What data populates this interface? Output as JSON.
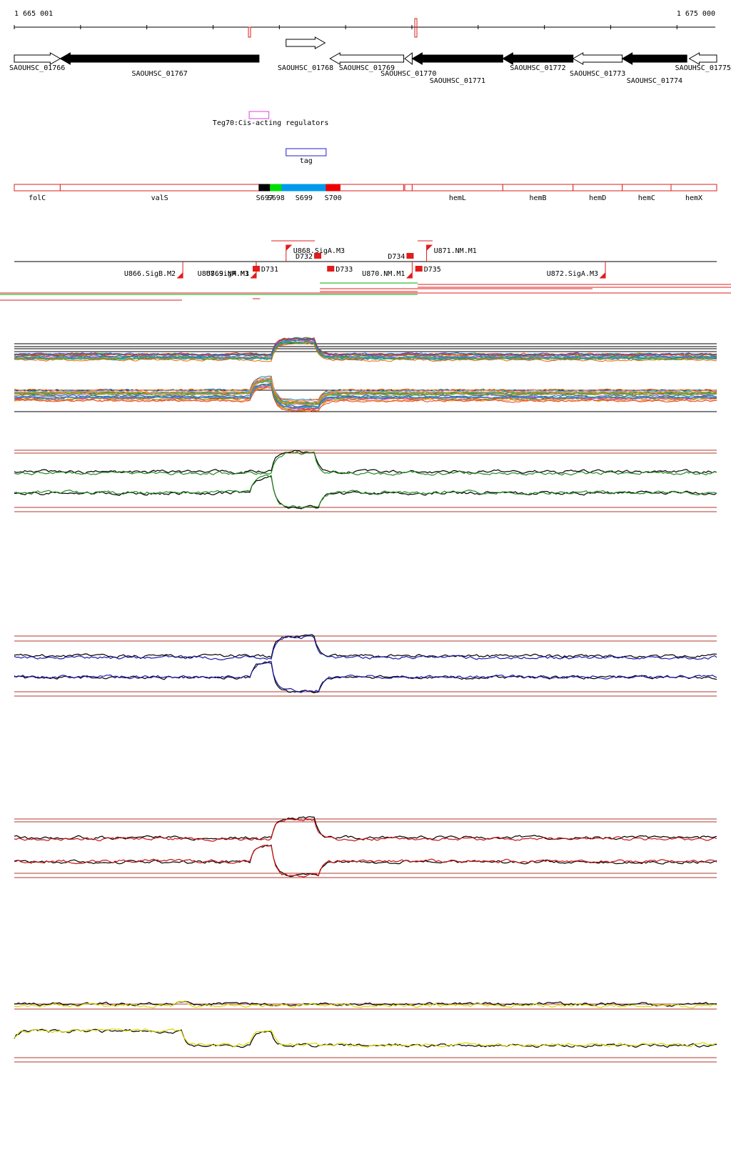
{
  "coordinates": {
    "start_label": "1 665 001",
    "end_label": "1 675 000",
    "start": 1665001,
    "end": 1675000
  },
  "genes": [
    {
      "id": "SAOUHSC_01766",
      "strand": "+",
      "fill": "white",
      "start": 1665001,
      "end": 1665655
    },
    {
      "id": "SAOUHSC_01767",
      "strand": "-",
      "fill": "black",
      "start": 1665655,
      "end": 1668485
    },
    {
      "id": "SAOUHSC_01768",
      "strand": "+",
      "fill": "white",
      "start": 1668870,
      "end": 1669425
    },
    {
      "id": "SAOUHSC_01769",
      "strand": "-",
      "fill": "white",
      "start": 1669495,
      "end": 1670545
    },
    {
      "id": "SAOUHSC_01770",
      "strand": "-",
      "fill": "white",
      "start": 1670560,
      "end": 1670665
    },
    {
      "id": "SAOUHSC_01771",
      "strand": "-",
      "fill": "black",
      "start": 1670665,
      "end": 1671955
    },
    {
      "id": "SAOUHSC_01772",
      "strand": "-",
      "fill": "black",
      "start": 1671955,
      "end": 1672955
    },
    {
      "id": "SAOUHSC_01773",
      "strand": "-",
      "fill": "white",
      "start": 1672955,
      "end": 1673655
    },
    {
      "id": "SAOUHSC_01774",
      "strand": "-",
      "fill": "black",
      "start": 1673655,
      "end": 1674575
    },
    {
      "id": "SAOUHSC_01775",
      "strand": "-",
      "fill": "white",
      "start": 1674610,
      "end": 1675000
    }
  ],
  "regulator": {
    "label": "Teg70:Cis-acting regulators",
    "start": 1668345,
    "end": 1668625
  },
  "tag_feature": {
    "label": "tag",
    "start": 1668870,
    "end": 1669440
  },
  "operons": [
    {
      "label": "folC",
      "start": 1665001,
      "end": 1665655
    },
    {
      "label": "valS",
      "start": 1665655,
      "end": 1668485
    },
    {
      "label": "S697",
      "start": 1668485,
      "end": 1668645,
      "color": "#000000"
    },
    {
      "label": "S698",
      "start": 1668645,
      "end": 1668810,
      "color": "#00dd00"
    },
    {
      "label": "S699",
      "start": 1668810,
      "end": 1669440,
      "color": "#0099ee"
    },
    {
      "label": "S700",
      "start": 1669440,
      "end": 1669640,
      "color": "#ee0000"
    },
    {
      "label": "",
      "start": 1669640,
      "end": 1670545
    },
    {
      "label": "",
      "start": 1670560,
      "end": 1670665
    },
    {
      "label": "hemL",
      "start": 1670665,
      "end": 1671955
    },
    {
      "label": "hemB",
      "start": 1671955,
      "end": 1672955
    },
    {
      "label": "hemD",
      "start": 1672955,
      "end": 1673655
    },
    {
      "label": "hemC",
      "start": 1673655,
      "end": 1674350
    },
    {
      "label": "hemX",
      "start": 1674350,
      "end": 1675000
    }
  ],
  "promoters": [
    {
      "label": "U866.SigB.M2",
      "strand": "-",
      "pos": 1667400
    },
    {
      "label": "U867.SigA.M3",
      "strand": "-",
      "pos": 1668445
    },
    {
      "label": "U869.NM.M1",
      "strand": "-",
      "pos": 1668445
    },
    {
      "label": "U868.SigA.M3",
      "strand": "+",
      "pos": 1668870
    },
    {
      "label": "U870.NM.M1",
      "strand": "-",
      "pos": 1670665
    },
    {
      "label": "U871.NM.M1",
      "strand": "+",
      "pos": 1670870
    },
    {
      "label": "U872.SigA.M3",
      "strand": "-",
      "pos": 1673415
    }
  ],
  "terminators": [
    {
      "label": "D731",
      "pos": 1668445
    },
    {
      "label": "D732",
      "pos": 1669320
    },
    {
      "label": "D733",
      "pos": 1669505
    },
    {
      "label": "D734",
      "pos": 1670635
    },
    {
      "label": "D735",
      "pos": 1670760
    }
  ],
  "panels": [
    {
      "id": "heatmap-profiles",
      "color": "#000000"
    },
    {
      "id": "condition-green",
      "color": "#228b22"
    },
    {
      "id": "condition-blue",
      "color": "#1a1aaa"
    },
    {
      "id": "condition-red",
      "color": "#cc1111"
    },
    {
      "id": "condition-yellow",
      "color": "#d9d900"
    }
  ],
  "colors": {
    "feature_red": "#e21c1c",
    "gene_black": "#000000",
    "regulator_magenta": "#e040e0",
    "tag_blue": "#2020cc"
  }
}
